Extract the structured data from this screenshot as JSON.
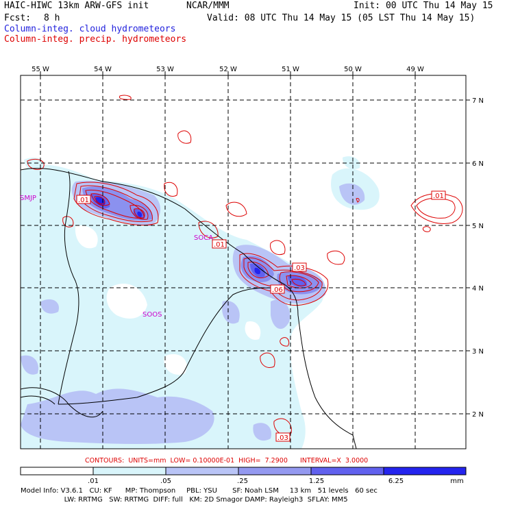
{
  "header": {
    "model": "HAIC-HIWC 13km ARW-GFS init",
    "org": "NCAR/MMM",
    "init": "Init: 00 UTC Thu 14 May 15",
    "fcst_label": "Fcst:",
    "fcst_value": "8 h",
    "valid": "Valid: 08 UTC Thu 14 May 15 (05 LST Thu 14 May 15)",
    "field1": "Column-integ. cloud hydrometeors",
    "field2": "Column-integ. precip. hydrometeors"
  },
  "map": {
    "lon_labels": [
      "55 W",
      "54 W",
      "53 W",
      "52 W",
      "51 W",
      "50 W",
      "49 W"
    ],
    "lat_labels": [
      "7 N",
      "6 N",
      "5 N",
      "4 N",
      "3 N",
      "2 N"
    ],
    "stations": [
      "SMJP",
      "SOCA",
      "SOOS"
    ],
    "contour_labels": [
      ".01",
      ".01",
      ".01",
      ".03",
      ".06",
      ".03"
    ],
    "colors": {
      "border": "#000000",
      "grid": "#000000",
      "contour": "#dd0000",
      "station": "#cc00cc"
    }
  },
  "contours_info": "CONTOURS:  UNITS=mm  LOW= 0.10000E-01  HIGH=  7.2900      INTERVAL=X  3.0000",
  "colorbar": {
    "labels": [
      ".01",
      ".05",
      ".25",
      "1.25",
      "6.25"
    ],
    "unit": "mm",
    "colors": [
      "#ffffff",
      "#d9f5fb",
      "#b9c4f6",
      "#9499f0",
      "#6161ee",
      "#2424ee"
    ]
  },
  "model_info": {
    "line1": "Model Info: V3.6.1   CU: KF      MP: Thompson     PBL: YSU       SF: Noah LSM     13 km   51 levels   60 sec",
    "line2": "                    LW: RRTMG   SW: RRTMG  DIFF: full   KM: 2D Smagor DAMP: Rayleigh3  SFLAY: MM5"
  }
}
